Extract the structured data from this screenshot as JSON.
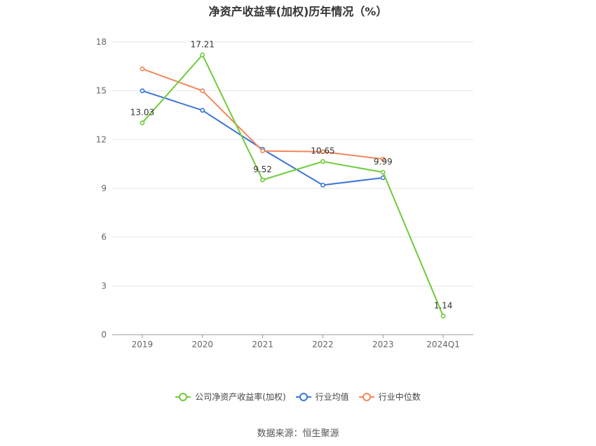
{
  "chart_data": {
    "type": "line",
    "title": "净资产收益率(加权)历年情况（%）",
    "categories": [
      "2019",
      "2020",
      "2021",
      "2022",
      "2023",
      "2024Q1"
    ],
    "ylim": [
      0,
      18
    ],
    "yticks": [
      0,
      3,
      6,
      9,
      12,
      15,
      18
    ],
    "grid": true,
    "legend_position": "bottom",
    "series": [
      {
        "name": "公司净资产收益率(加权)",
        "color": "#6fcb3a",
        "labeled": true,
        "values": [
          13.03,
          17.21,
          9.52,
          10.65,
          9.99,
          1.14
        ]
      },
      {
        "name": "行业均值",
        "color": "#3b76d6",
        "labeled": false,
        "values": [
          15.0,
          13.8,
          11.4,
          9.2,
          9.65,
          null
        ]
      },
      {
        "name": "行业中位数",
        "color": "#f0885a",
        "labeled": false,
        "values": [
          16.35,
          15.0,
          11.3,
          11.25,
          10.8,
          null
        ]
      }
    ]
  },
  "source": "数据来源：恒生聚源"
}
